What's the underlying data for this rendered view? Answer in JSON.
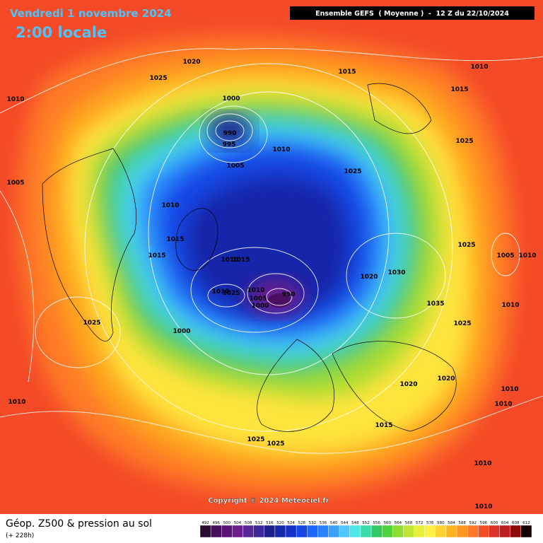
{
  "header": {
    "date": "Vendredi 1 novembre 2024",
    "time": "2:00 locale",
    "run": "Ensemble GEFS  ( Moyenne )  -  12 Z du 22/10/2024"
  },
  "isobar_labels": [
    1020,
    1025,
    1010,
    1015,
    1010,
    1015,
    1000,
    990,
    995,
    1010,
    1025,
    1005,
    1025,
    1005,
    1010,
    1015,
    1015,
    1025,
    1005,
    1010,
    1010,
    1015,
    1020,
    1030,
    1010,
    1025,
    1010,
    1005,
    990,
    1000,
    1035,
    1010,
    1025,
    1025,
    1000,
    1020,
    1020,
    1010,
    1010,
    1010,
    1015,
    1025,
    1025,
    1010,
    1010
  ],
  "copyright": "Copyright © 2024 Meteociel.fr",
  "footer": {
    "title": "Géop. Z500 & pression au sol",
    "lead": "(+ 228h)"
  },
  "colorbar": {
    "levels": [
      492,
      496,
      500,
      504,
      508,
      512,
      516,
      520,
      524,
      528,
      532,
      536,
      540,
      544,
      548,
      552,
      556,
      560,
      564,
      568,
      572,
      576,
      580,
      584,
      588,
      592,
      596,
      600,
      604,
      608,
      612
    ],
    "colors": [
      "#2a0a30",
      "#46105a",
      "#5a1478",
      "#6e1e8c",
      "#5a2896",
      "#3c2896",
      "#1e1e8c",
      "#1428aa",
      "#1432c8",
      "#1446e6",
      "#1e64ff",
      "#2882ff",
      "#3ca0ff",
      "#50c8ff",
      "#50e6e6",
      "#3cdcaa",
      "#32c864",
      "#50d23c",
      "#8cdc32",
      "#bee632",
      "#e6f03c",
      "#fff046",
      "#ffd232",
      "#ffb41e",
      "#ff961e",
      "#ff7828",
      "#f05028",
      "#dc3228",
      "#be1e1e",
      "#8c0a0a",
      "#140000"
    ]
  }
}
